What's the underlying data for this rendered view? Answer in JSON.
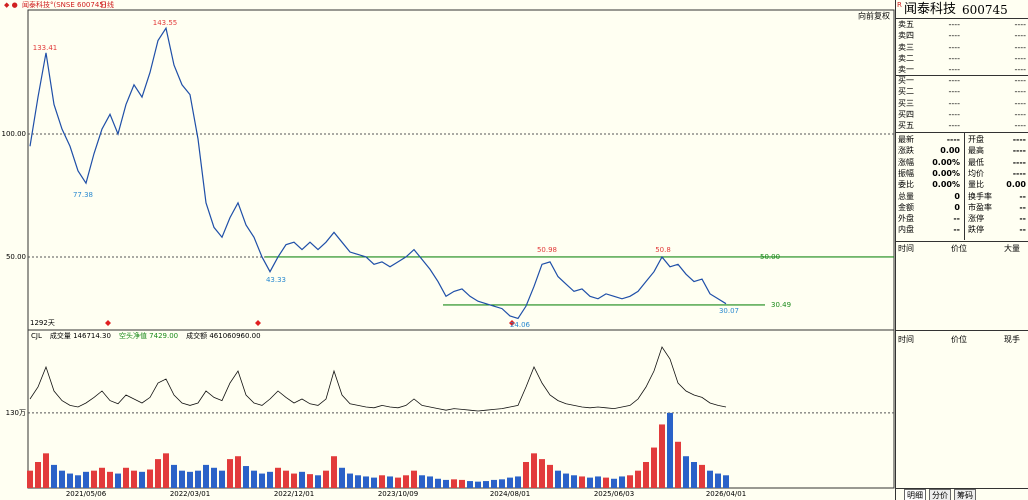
{
  "header": {
    "title": "闻泰科技°(SNSE 600745)",
    "period": "日线",
    "adjust": "向前复权"
  },
  "chart_data": {
    "type": "line",
    "categories": [
      null,
      null,
      null,
      null,
      null,
      null,
      null,
      "2021/05/06",
      null,
      null,
      null,
      null,
      null,
      null,
      null,
      null,
      null,
      null,
      null,
      null,
      "2022/03/01",
      null,
      null,
      null,
      null,
      null,
      null,
      null,
      null,
      null,
      null,
      null,
      null,
      "2022/12/01",
      null,
      null,
      null,
      null,
      null,
      null,
      null,
      null,
      null,
      null,
      null,
      null,
      "2023/10/09",
      null,
      null,
      null,
      null,
      null,
      null,
      null,
      null,
      null,
      null,
      null,
      null,
      null,
      "2024/08/01",
      null,
      null,
      null,
      null,
      null,
      null,
      null,
      null,
      null,
      null,
      null,
      null,
      "2025/06/03",
      null,
      null,
      null,
      null,
      null,
      null,
      null,
      null,
      null,
      null,
      null,
      null,
      null,
      "2026/04/01"
    ],
    "series": [
      {
        "name": "闻泰科技",
        "color": "#1f4fa8",
        "values": [
          95,
          115,
          133,
          112,
          102,
          95,
          85,
          80,
          92,
          102,
          108,
          100,
          112,
          120,
          115,
          125,
          138,
          143,
          128,
          120,
          116,
          98,
          72,
          62,
          58,
          66,
          72,
          63,
          58,
          50,
          44,
          50,
          55,
          56,
          53,
          56,
          53,
          56,
          60,
          56,
          52,
          51,
          50,
          47,
          48,
          46,
          48,
          50,
          53,
          49,
          45,
          40,
          34,
          36,
          37,
          34,
          32,
          31,
          30,
          29,
          26,
          25,
          30,
          38,
          47,
          48,
          42,
          39,
          36,
          37,
          34,
          33,
          35,
          34,
          33,
          34,
          36,
          40,
          44,
          50,
          46,
          47,
          43,
          40,
          41,
          35,
          33,
          31
        ]
      }
    ],
    "ylim": [
      20.3,
      150.4
    ],
    "yticks": [
      {
        "value": 100,
        "label": "100.00"
      },
      {
        "value": 50,
        "label": "50.00"
      }
    ],
    "grid": true,
    "annotations": [
      {
        "value": 133.41,
        "color": "#e23b3b"
      },
      {
        "value": 77.38,
        "color": "#2a8ad0"
      },
      {
        "value": 143.55,
        "color": "#e23b3b"
      },
      {
        "value": 43.33,
        "color": "#2a8ad0"
      },
      {
        "value": 24.06,
        "color": "#2a8ad0"
      },
      {
        "value": 50.98,
        "color": "#e23b3b"
      },
      {
        "value": 50.8,
        "color": "#e23b3b"
      },
      {
        "value": 30.07,
        "color": "#2a8ad0"
      }
    ],
    "levels": [
      {
        "value": 50,
        "label": "50.00",
        "color": "#1a8a1a"
      },
      {
        "value": 30.49,
        "color": "#1a8a1a"
      }
    ],
    "span_label": "1292天",
    "volume": {
      "legend": [
        {
          "name": "CJL",
          "color": "#000000"
        },
        {
          "name": "成交量 146714.30",
          "color": "#000000"
        },
        {
          "name": "空头净值 7429.00",
          "color": "#1a8a1a"
        },
        {
          "name": "成交额 461060960.00",
          "color": "#000000"
        }
      ],
      "values": [
        30,
        45,
        60,
        40,
        30,
        25,
        22,
        28,
        30,
        35,
        28,
        25,
        35,
        30,
        28,
        32,
        50,
        60,
        40,
        30,
        28,
        30,
        40,
        35,
        30,
        50,
        55,
        38,
        30,
        25,
        28,
        35,
        30,
        25,
        28,
        24,
        22,
        30,
        55,
        35,
        25,
        22,
        20,
        18,
        22,
        20,
        18,
        22,
        30,
        22,
        20,
        16,
        14,
        15,
        14,
        12,
        11,
        12,
        14,
        15,
        18,
        20,
        45,
        60,
        50,
        40,
        30,
        25,
        22,
        20,
        18,
        20,
        18,
        16,
        20,
        22,
        30,
        45,
        70,
        110,
        130,
        80,
        55,
        45,
        40,
        30,
        25,
        22
      ],
      "up_color": "#e23b3b",
      "down_color": "#2a62c8",
      "ylim": [
        0,
        270
      ],
      "yticks": [
        {
          "value": 130,
          "label": "130万"
        }
      ],
      "cjl": {
        "color": "#111111",
        "ylim": [
          0,
          100
        ],
        "values": [
          20,
          35,
          60,
          30,
          18,
          12,
          10,
          15,
          22,
          30,
          18,
          14,
          25,
          20,
          15,
          22,
          40,
          45,
          25,
          15,
          12,
          15,
          30,
          22,
          18,
          40,
          55,
          25,
          15,
          12,
          20,
          30,
          22,
          15,
          20,
          14,
          12,
          20,
          55,
          25,
          14,
          12,
          10,
          9,
          12,
          10,
          9,
          12,
          20,
          12,
          10,
          8,
          6,
          8,
          7,
          6,
          5,
          6,
          7,
          8,
          10,
          12,
          35,
          60,
          40,
          25,
          18,
          14,
          12,
          10,
          9,
          10,
          9,
          8,
          10,
          12,
          20,
          35,
          55,
          85,
          70,
          40,
          30,
          25,
          22,
          15,
          12,
          10
        ]
      }
    }
  },
  "quote": {
    "flag": "R",
    "name": "闻泰科技",
    "code": "600745",
    "asks": [
      [
        "卖五",
        "----",
        "----"
      ],
      [
        "卖四",
        "----",
        "----"
      ],
      [
        "卖三",
        "----",
        "----"
      ],
      [
        "卖二",
        "----",
        "----"
      ],
      [
        "卖一",
        "----",
        "----"
      ]
    ],
    "bids": [
      [
        "买一",
        "----",
        "----"
      ],
      [
        "买二",
        "----",
        "----"
      ],
      [
        "买三",
        "----",
        "----"
      ],
      [
        "买四",
        "----",
        "----"
      ],
      [
        "买五",
        "----",
        "----"
      ]
    ],
    "stats": [
      [
        "最新",
        "----",
        "开盘",
        "----"
      ],
      [
        "涨跌",
        "0.00",
        "最高",
        "----"
      ],
      [
        "涨幅",
        "0.00%",
        "最低",
        "----"
      ],
      [
        "振幅",
        "0.00%",
        "均价",
        "----"
      ],
      [
        "委比",
        "0.00%",
        "量比",
        "0.00"
      ],
      [
        "总量",
        "0",
        "换手率",
        "--"
      ],
      [
        "金额",
        "0",
        "市盈率",
        "--"
      ],
      [
        "外盘",
        "--",
        "涨停",
        "--"
      ],
      [
        "内盘",
        "--",
        "跌停",
        "--"
      ]
    ],
    "trades_head": [
      "时间",
      "价位",
      "大量"
    ],
    "ticks_head": [
      "时间",
      "价位",
      "现手"
    ],
    "tabs": [
      "明细",
      "分价",
      "筹码"
    ]
  }
}
